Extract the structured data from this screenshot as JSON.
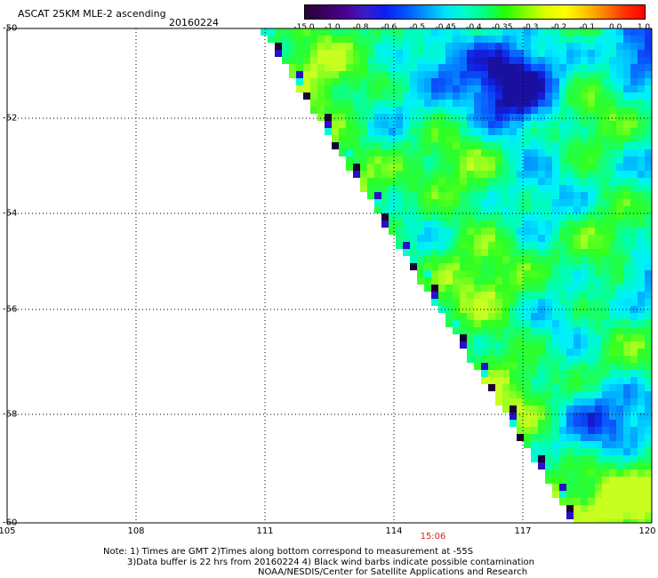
{
  "header": {
    "title": "ASCAT 25KM MLE-2 ascending",
    "date": "20160224"
  },
  "colorbar": {
    "labels": [
      "-15.0",
      "-1.0",
      "-0.8",
      "-0.6",
      "-0.5",
      "-0.45",
      "-0.4",
      "-0.35",
      "-0.3",
      "-0.2",
      "-0.1",
      "0.0",
      "1.0"
    ],
    "colors": [
      "#2a0033",
      "#3a0060",
      "#4c0090",
      "#3a1cc8",
      "#0a1ef0",
      "#0050ff",
      "#0096ff",
      "#00e0ff",
      "#00ffc8",
      "#00ff80",
      "#22ff00",
      "#80ff00",
      "#d8ff00",
      "#ffff00",
      "#ffc800",
      "#ff8000",
      "#ff3000",
      "#ff0000"
    ]
  },
  "axes": {
    "lat_labels": [
      "-50",
      "-52",
      "-54",
      "-56",
      "-58",
      "-60"
    ],
    "lon_labels": [
      "105",
      "108",
      "111",
      "114",
      "117",
      "120"
    ],
    "lat_range": [
      -60,
      -50
    ],
    "lon_range": [
      105,
      120
    ],
    "grid": true
  },
  "pass_time": "15:06",
  "notes": {
    "line1": "Note: 1) Times are GMT 2)Times along bottom correspond to measurement at -55S",
    "line2": "3)Data buffer is 22 hrs from 20160224 4) Black wind barbs indicate possible contamination",
    "line3": "NOAA/NESDIS/Center for Satellite Applications and Research"
  }
}
